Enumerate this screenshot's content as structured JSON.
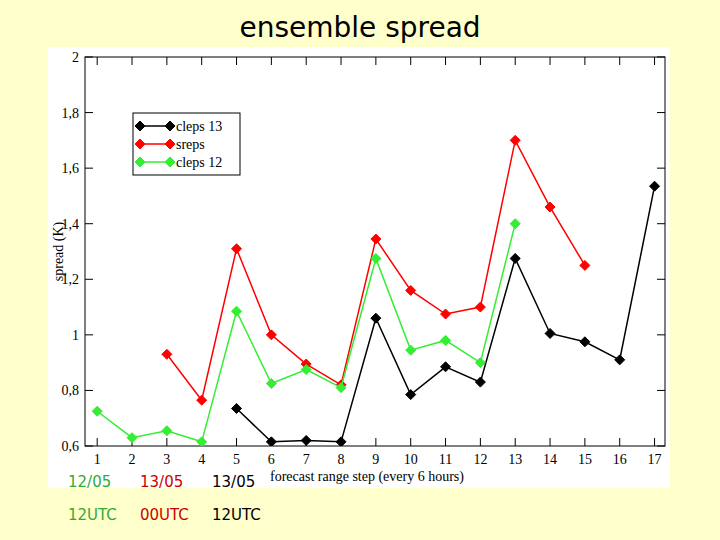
{
  "chart_data": {
    "type": "line",
    "title": "ensemble spread",
    "x_label": "forecast range step (every 6 hours)",
    "y_label": "spread (K)",
    "x": [
      1,
      2,
      3,
      4,
      5,
      6,
      7,
      8,
      9,
      10,
      11,
      12,
      13,
      14,
      15,
      16,
      17
    ],
    "xlim": [
      0.65,
      17.3
    ],
    "xticks": [
      1,
      2,
      3,
      4,
      5,
      6,
      7,
      8,
      9,
      10,
      11,
      12,
      13,
      14,
      15,
      16,
      17
    ],
    "ylim": [
      0.6,
      2
    ],
    "yticks": [
      {
        "value": 0.6,
        "label": "0,6"
      },
      {
        "value": 0.8,
        "label": "0,8"
      },
      1,
      {
        "value": 1.2,
        "label": "1,2"
      },
      {
        "value": 1.4,
        "label": "1,4"
      },
      {
        "value": 1.6,
        "label": "1,6"
      },
      {
        "value": 1.8,
        "label": "1,8"
      },
      2
    ],
    "legend": "top-left",
    "grid": false,
    "marker": "diamond",
    "line_style": "solid",
    "series": [
      {
        "name": "cleps 13",
        "color": "#000000",
        "values": [
          null,
          null,
          null,
          null,
          0.735,
          0.615,
          0.62,
          0.615,
          1.06,
          0.785,
          0.885,
          0.83,
          1.275,
          1.005,
          0.975,
          0.91,
          1.535
        ]
      },
      {
        "name": "sreps",
        "color": "#ff0000",
        "values": [
          null,
          null,
          0.93,
          0.765,
          1.31,
          1.0,
          0.895,
          0.82,
          1.345,
          1.16,
          1.075,
          1.1,
          1.7,
          1.46,
          1.25,
          null,
          null
        ]
      },
      {
        "name": "cleps 12",
        "color": "#33ee33",
        "values": [
          0.725,
          0.63,
          0.655,
          0.615,
          1.085,
          0.825,
          0.875,
          0.81,
          1.275,
          0.945,
          0.98,
          0.9,
          1.4,
          null,
          null,
          null,
          null
        ]
      }
    ],
    "annotations": [
      {
        "lines": [
          "12/05",
          "12UTC"
        ],
        "color": "#33aa33"
      },
      {
        "lines": [
          "13/05",
          "00UTC"
        ],
        "color": "#cc0000"
      },
      {
        "lines": [
          "13/05",
          "12UTC"
        ],
        "color": "#000000"
      }
    ]
  }
}
